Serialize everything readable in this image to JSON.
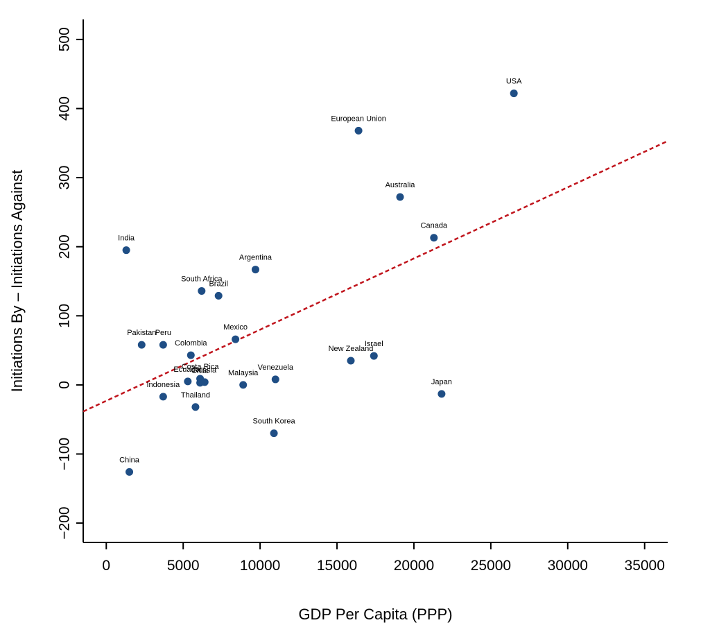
{
  "chart_data": {
    "type": "scatter",
    "xlabel": "GDP Per Capita (PPP)",
    "ylabel": "Initiations By – Initiations Against",
    "xlim": [
      -1500,
      36500
    ],
    "ylim": [
      -228,
      529
    ],
    "x_ticks": [
      0,
      5000,
      10000,
      15000,
      20000,
      25000,
      30000,
      35000
    ],
    "y_ticks": [
      -200,
      -100,
      0,
      100,
      200,
      300,
      400,
      500
    ],
    "grid": false,
    "legend": "none",
    "point_color": "#1f4e85",
    "trend_color": "#c0141c",
    "trendline": {
      "x": [
        -1500,
        36500
      ],
      "y": [
        -38.5,
        353
      ]
    },
    "points": [
      {
        "label": "USA",
        "x": 26500,
        "y": 422
      },
      {
        "label": "European Union",
        "x": 16400,
        "y": 368
      },
      {
        "label": "Australia",
        "x": 19100,
        "y": 272
      },
      {
        "label": "Canada",
        "x": 21300,
        "y": 213
      },
      {
        "label": "India",
        "x": 1300,
        "y": 195
      },
      {
        "label": "Argentina",
        "x": 9700,
        "y": 167
      },
      {
        "label": "South Africa",
        "x": 6200,
        "y": 136
      },
      {
        "label": "Brazil",
        "x": 7300,
        "y": 129
      },
      {
        "label": "Mexico",
        "x": 8400,
        "y": 66
      },
      {
        "label": "Pakistan",
        "x": 2300,
        "y": 58
      },
      {
        "label": "Peru",
        "x": 3700,
        "y": 58
      },
      {
        "label": "Colombia",
        "x": 5500,
        "y": 43
      },
      {
        "label": "Israel",
        "x": 17400,
        "y": 42
      },
      {
        "label": "New Zealand",
        "x": 15900,
        "y": 35
      },
      {
        "label": "Costa Rica",
        "x": 6100,
        "y": 9
      },
      {
        "label": "Venezuela",
        "x": 11000,
        "y": 8
      },
      {
        "label": "Ecuador",
        "x": 5300,
        "y": 5
      },
      {
        "label": "Chile",
        "x": 6100,
        "y": 3
      },
      {
        "label": "Russia",
        "x": 6400,
        "y": 4
      },
      {
        "label": "Malaysia",
        "x": 8900,
        "y": 0
      },
      {
        "label": "Japan",
        "x": 21800,
        "y": -13
      },
      {
        "label": "Indonesia",
        "x": 3700,
        "y": -17
      },
      {
        "label": "Thailand",
        "x": 5800,
        "y": -32
      },
      {
        "label": "South Korea",
        "x": 10900,
        "y": -70
      },
      {
        "label": "China",
        "x": 1500,
        "y": -126
      }
    ]
  }
}
